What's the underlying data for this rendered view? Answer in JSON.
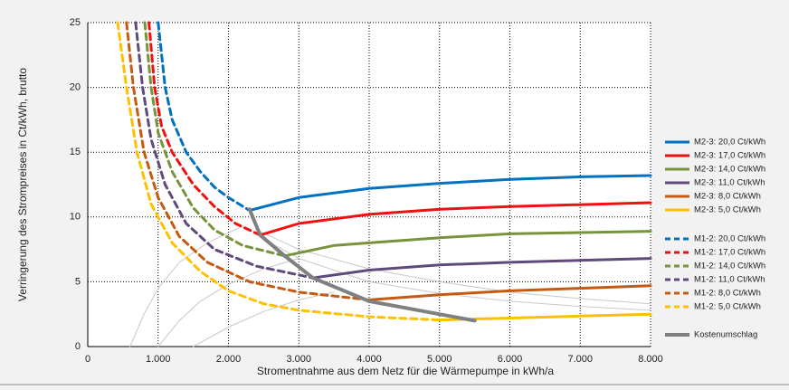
{
  "chart_data": {
    "type": "line",
    "x_label": "Stromentnahme aus dem Netz für die Wärmepumpe in kWh/a",
    "y_label": "Verringerung des Strompreises  in Ct/kWh, brutto",
    "xlim": [
      0,
      8000
    ],
    "ylim": [
      0,
      25
    ],
    "xticks": [
      0,
      {
        "value": 1000,
        "label": "1.000"
      },
      {
        "value": 2000,
        "label": "2.000"
      },
      {
        "value": 3000,
        "label": "3.000"
      },
      {
        "value": 4000,
        "label": "4.000"
      },
      {
        "value": 5000,
        "label": "5.000"
      },
      {
        "value": 6000,
        "label": "6.000"
      },
      {
        "value": 7000,
        "label": "7.000"
      },
      {
        "value": 8000,
        "label": "8.000"
      }
    ],
    "yticks": [
      0,
      5,
      10,
      15,
      20,
      25
    ],
    "grid": true,
    "legend": "right",
    "series": [
      {
        "name": "M2-3: 20,0 Ct/kWh",
        "color": "#0070c0",
        "dash": false,
        "x": [
          2300,
          3000,
          4000,
          5000,
          6000,
          7000,
          8000
        ],
        "values": [
          10.5,
          11.5,
          12.2,
          12.6,
          12.9,
          13.1,
          13.2
        ]
      },
      {
        "name": "M2-3: 17,0 Ct/kWh",
        "color": "#ee1111",
        "dash": false,
        "x": [
          2450,
          3000,
          4000,
          5000,
          6000,
          8000
        ],
        "values": [
          8.6,
          9.5,
          10.2,
          10.6,
          10.8,
          11.1
        ]
      },
      {
        "name": "M2-3: 14,0 Ct/kWh",
        "color": "#77933c",
        "dash": false,
        "x": [
          2800,
          3500,
          4000,
          5000,
          6000,
          8000
        ],
        "values": [
          7.0,
          7.8,
          8.0,
          8.4,
          8.7,
          8.9
        ]
      },
      {
        "name": "M2-3: 11,0 Ct/kWh",
        "color": "#604a7b",
        "dash": false,
        "x": [
          3200,
          4000,
          5000,
          6000,
          8000
        ],
        "values": [
          5.3,
          5.9,
          6.3,
          6.5,
          6.8
        ]
      },
      {
        "name": "M2-3: 8,0 Ct/kWh",
        "color": "#c55a11",
        "dash": false,
        "x": [
          4000,
          5000,
          6000,
          7000,
          8000
        ],
        "values": [
          3.6,
          4.0,
          4.3,
          4.5,
          4.7
        ]
      },
      {
        "name": "M2-3: 5,0 Ct/kWh",
        "color": "#ffc000",
        "dash": false,
        "x": [
          5000,
          6000,
          7000,
          8000
        ],
        "values": [
          2.05,
          2.2,
          2.35,
          2.5
        ]
      },
      {
        "name": "M1-2: 20,0 Ct/kWh",
        "color": "#0070c0",
        "dash": true,
        "x": [
          1000,
          1100,
          1200,
          1400,
          1600,
          1800,
          2000,
          2300
        ],
        "values": [
          25,
          20,
          17.5,
          15,
          13.5,
          12.3,
          11.5,
          10.5
        ]
      },
      {
        "name": "M1-2: 17,0 Ct/kWh",
        "color": "#ee1111",
        "dash": true,
        "x": [
          870,
          950,
          1050,
          1200,
          1500,
          1800,
          2100,
          2450
        ],
        "values": [
          25,
          20,
          17,
          15,
          12.5,
          10.8,
          9.5,
          8.6
        ]
      },
      {
        "name": "M1-2: 14,0 Ct/kWh",
        "color": "#77933c",
        "dash": true,
        "x": [
          810,
          900,
          1000,
          1200,
          1500,
          1800,
          2200,
          2800
        ],
        "values": [
          25,
          20,
          16.5,
          13.5,
          10.7,
          9.0,
          7.8,
          7.0
        ]
      },
      {
        "name": "M1-2: 11,0 Ct/kWh",
        "color": "#604a7b",
        "dash": true,
        "x": [
          680,
          780,
          900,
          1100,
          1400,
          1800,
          2400,
          3200
        ],
        "values": [
          25,
          20,
          16,
          12.5,
          9.5,
          7.5,
          6.2,
          5.3
        ]
      },
      {
        "name": "M1-2: 8,0 Ct/kWh",
        "color": "#c55a11",
        "dash": true,
        "x": [
          550,
          650,
          800,
          1000,
          1300,
          1700,
          2300,
          3000,
          4000
        ],
        "values": [
          25,
          20,
          15,
          11.5,
          8.5,
          6.5,
          5.0,
          4.2,
          3.6
        ]
      },
      {
        "name": "M1-2: 5,0 Ct/kWh",
        "color": "#ffc000",
        "dash": true,
        "x": [
          425,
          550,
          700,
          900,
          1200,
          1600,
          2000,
          2500,
          3000,
          4000,
          5000
        ],
        "values": [
          25,
          20,
          15,
          11,
          8,
          5.8,
          4.3,
          3.3,
          2.8,
          2.3,
          2.05
        ]
      },
      {
        "name": "Kostenumschlag",
        "color": "#808080",
        "dash": false,
        "width": 4,
        "x": [
          2300,
          2450,
          2800,
          3200,
          4000,
          5500
        ],
        "values": [
          10.6,
          8.6,
          7.0,
          5.3,
          3.5,
          2.0
        ]
      },
      {
        "color": "#c8c8c8",
        "dash": false,
        "width": 1,
        "x": [
          2400,
          3000,
          4000,
          5000,
          6000,
          7000,
          8000
        ],
        "values": [
          9.0,
          7.5,
          6.0,
          5.0,
          4.2,
          3.7,
          3.3
        ]
      },
      {
        "color": "#c8c8c8",
        "dash": false,
        "width": 1,
        "x": [
          2600,
          3000,
          4000,
          5000,
          6000,
          7000,
          8000
        ],
        "values": [
          8.0,
          6.8,
          5.0,
          4.1,
          3.5,
          3.1,
          2.8
        ]
      },
      {
        "color": "#c8c8c8",
        "dash": false,
        "width": 1,
        "x": [
          600,
          800,
          1000,
          1300,
          1700,
          2200
        ],
        "values": [
          0,
          2.5,
          4.5,
          6.5,
          8.0,
          9.3
        ]
      },
      {
        "color": "#c8c8c8",
        "dash": false,
        "width": 1,
        "x": [
          1000,
          1300,
          1600,
          2000,
          2500,
          3000
        ],
        "values": [
          0,
          2.0,
          3.5,
          4.8,
          6.0,
          6.8
        ]
      },
      {
        "color": "#c8c8c8",
        "dash": false,
        "width": 1,
        "x": [
          1500,
          2000,
          2500,
          3000,
          3500
        ],
        "values": [
          0,
          1.5,
          2.7,
          3.6,
          4.2
        ]
      }
    ]
  }
}
